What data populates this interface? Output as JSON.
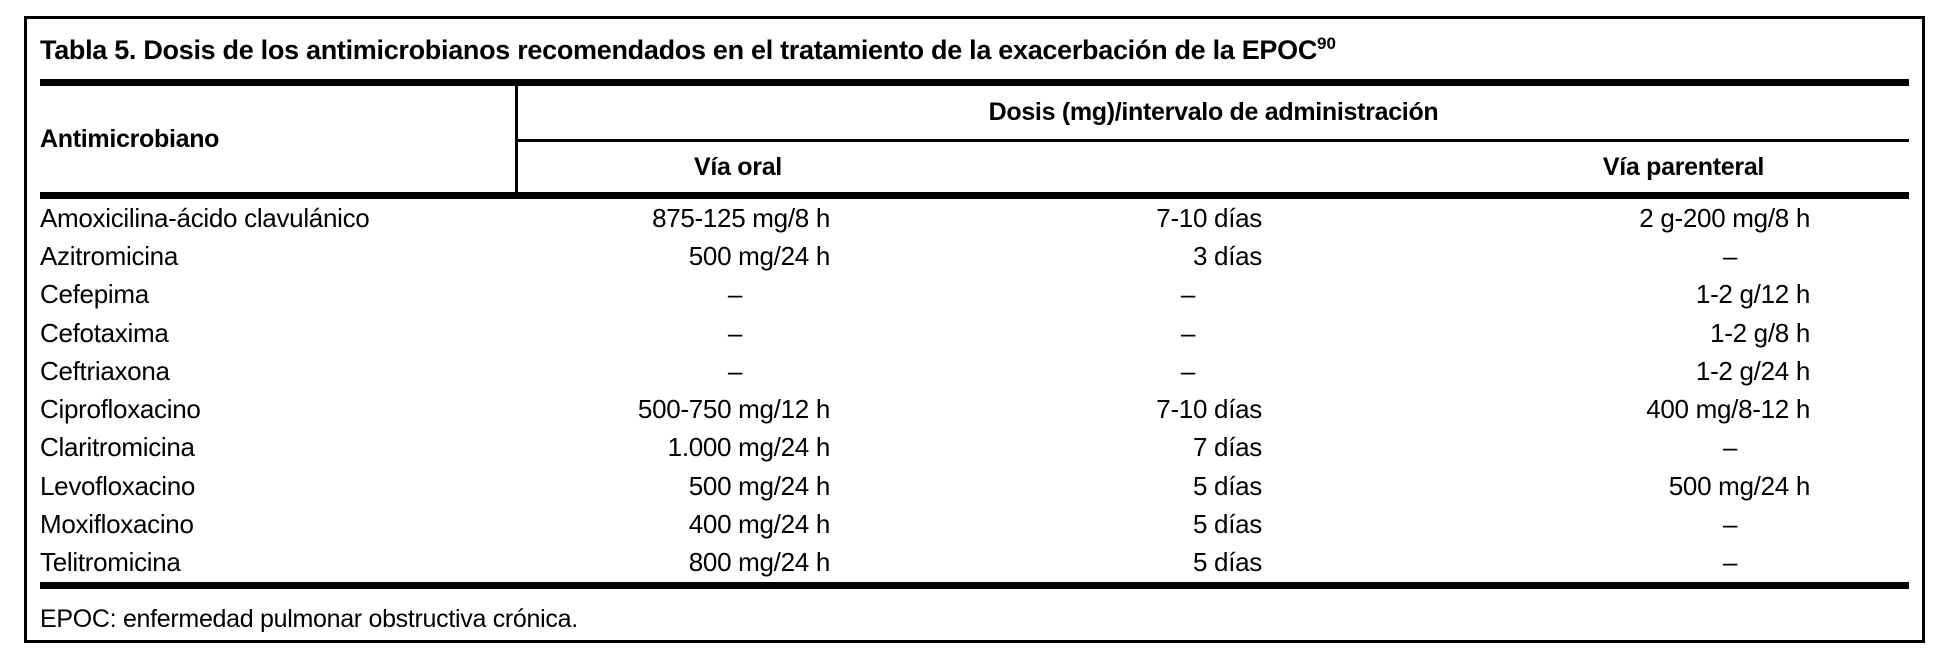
{
  "table": {
    "title": "Tabla 5. Dosis de los antimicrobianos recomendados en el tratamiento de la exacerbación de la EPOC",
    "title_superscript": "90",
    "columns": {
      "antimicrobial": "Antimicrobiano",
      "dose_group": "Dosis (mg)/intervalo de administración",
      "oral": "Vía oral",
      "parenteral": "Vía parenteral"
    },
    "rows": [
      {
        "name": "Amoxicilina-ácido clavulánico",
        "oral": "875-125 mg/8 h",
        "duration": "7-10 días",
        "parenteral": "2 g-200 mg/8 h"
      },
      {
        "name": "Azitromicina",
        "oral": "500 mg/24 h",
        "duration": "3 días",
        "parenteral": "–"
      },
      {
        "name": "Cefepima",
        "oral": "–",
        "duration": "–",
        "parenteral": "1-2 g/12 h"
      },
      {
        "name": "Cefotaxima",
        "oral": "–",
        "duration": "–",
        "parenteral": "1-2 g/8 h"
      },
      {
        "name": "Ceftriaxona",
        "oral": "–",
        "duration": "–",
        "parenteral": "1-2 g/24 h"
      },
      {
        "name": "Ciprofloxacino",
        "oral": "500-750 mg/12 h",
        "duration": "7-10 días",
        "parenteral": "400 mg/8-12 h"
      },
      {
        "name": "Claritromicina",
        "oral": "1.000 mg/24 h",
        "duration": "7 días",
        "parenteral": "–"
      },
      {
        "name": "Levofloxacino",
        "oral": "500 mg/24 h",
        "duration": "5 días",
        "parenteral": "500 mg/24 h"
      },
      {
        "name": "Moxifloxacino",
        "oral": "400 mg/24 h",
        "duration": "5 días",
        "parenteral": "–"
      },
      {
        "name": "Telitromicina",
        "oral": "800 mg/24 h",
        "duration": "5 días",
        "parenteral": "–"
      }
    ],
    "footnote": "EPOC: enfermedad pulmonar obstructiva crónica.",
    "dash": "–"
  },
  "colors": {
    "text": "#000000",
    "background": "#ffffff",
    "rule": "#000000"
  }
}
